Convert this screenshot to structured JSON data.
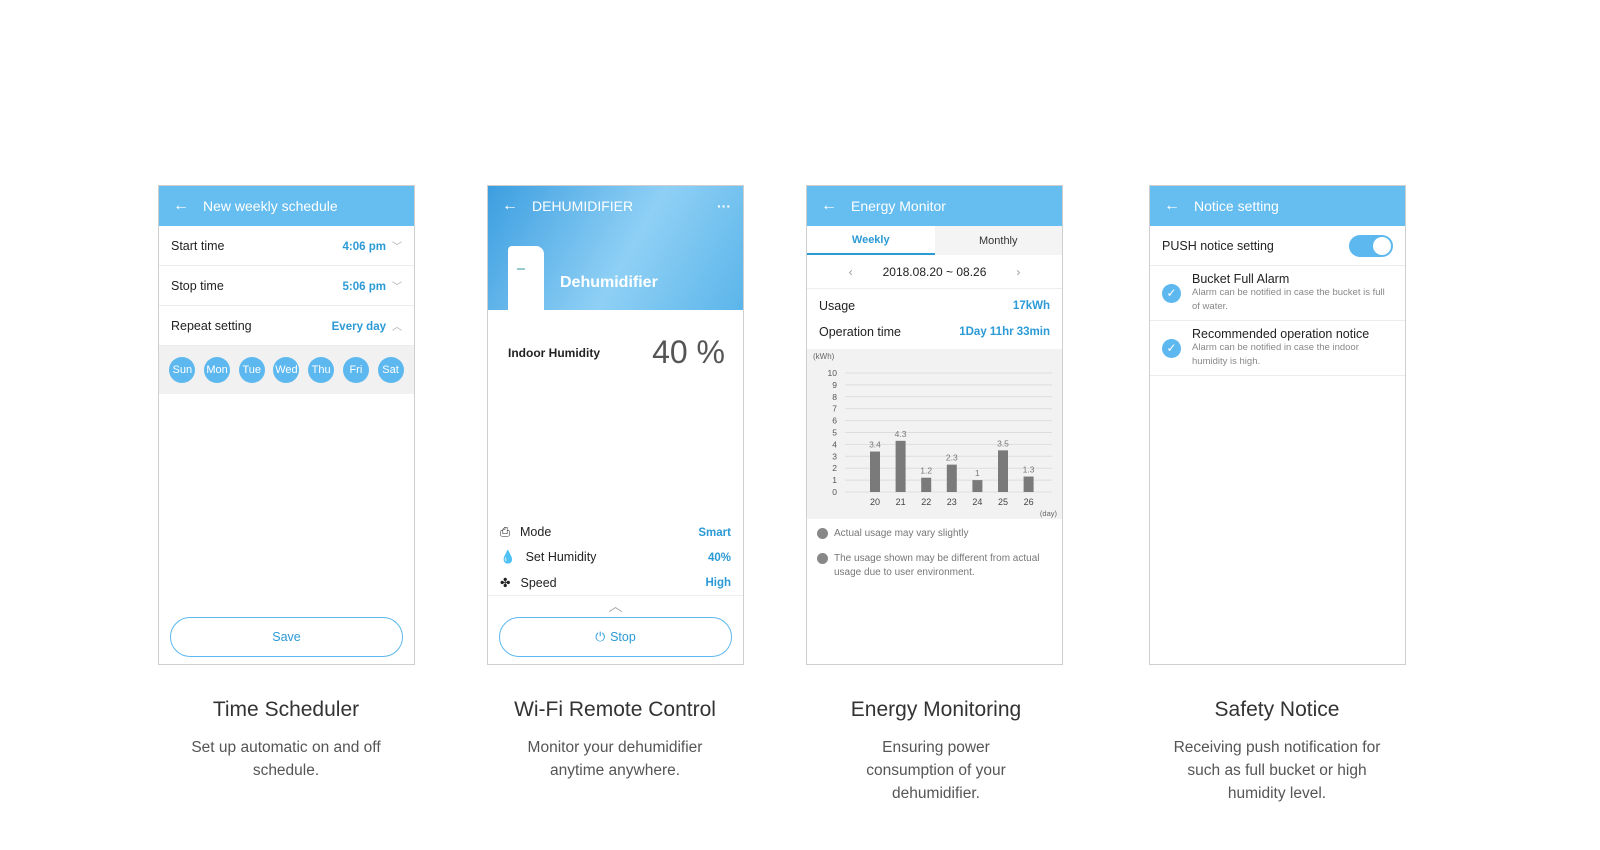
{
  "scheduler": {
    "header": "New weekly schedule",
    "rows": [
      {
        "label": "Start time",
        "value": "4:06 pm"
      },
      {
        "label": "Stop time",
        "value": "5:06 pm"
      },
      {
        "label": "Repeat setting",
        "value": "Every day"
      }
    ],
    "days": [
      "Sun",
      "Mon",
      "Tue",
      "Wed",
      "Thu",
      "Fri",
      "Sat"
    ],
    "save": "Save"
  },
  "remote": {
    "header": "DEHUMIDIFIER",
    "device": "Dehumidifier",
    "humidity_label": "Indoor Humidity",
    "humidity_value": "40",
    "humidity_unit": "%",
    "settings": [
      {
        "label": "Mode",
        "value": "Smart",
        "icon": "mode-icon"
      },
      {
        "label": "Set Humidity",
        "value": "40%",
        "icon": "humidity-drop-icon"
      },
      {
        "label": "Speed",
        "value": "High",
        "icon": "fan-icon"
      }
    ],
    "stop": "Stop"
  },
  "energy": {
    "header": "Energy Monitor",
    "tabs": [
      "Weekly",
      "Monthly"
    ],
    "active_tab": "Weekly",
    "range": "2018.08.20 ~ 08.26",
    "usage_label": "Usage",
    "usage_value": "17kWh",
    "optime_label": "Operation time",
    "optime_value": "1Day 11hr 33min",
    "notes": [
      "Actual usage may vary slightly",
      "The usage shown may be different from actual usage due to user environment."
    ]
  },
  "chart_data": {
    "type": "bar",
    "categories": [
      "20",
      "21",
      "22",
      "23",
      "24",
      "25",
      "26"
    ],
    "values": [
      3.4,
      4.3,
      1.2,
      2.3,
      1,
      3.5,
      1.3
    ],
    "ylabel": "(kWh)",
    "xlabel": "(day)",
    "ylim": [
      0,
      10
    ],
    "yticks": [
      "0",
      "1",
      "2",
      "3",
      "4",
      "5",
      "6",
      "7",
      "8",
      "9",
      "10"
    ],
    "grid": true,
    "bar_color": "#7a7a7a"
  },
  "notice": {
    "header": "Notice setting",
    "push_label": "PUSH notice setting",
    "push_on": true,
    "items": [
      {
        "title": "Bucket Full Alarm",
        "desc": "Alarm can be notified in case the bucket is full of water."
      },
      {
        "title": "Recommended operation notice",
        "desc": "Alarm can be notified in case the indoor humidity is high."
      }
    ]
  },
  "captions": [
    {
      "title": "Time Scheduler",
      "desc": "Set up automatic on and off schedule."
    },
    {
      "title": "Wi-Fi Remote Control",
      "desc": "Monitor your dehumidifier anytime anywhere."
    },
    {
      "title": "Energy Monitoring",
      "desc": "Ensuring power consumption of your dehumidifier."
    },
    {
      "title": "Safety Notice",
      "desc": "Receiving push notification for such as full bucket or high humidity level."
    }
  ]
}
